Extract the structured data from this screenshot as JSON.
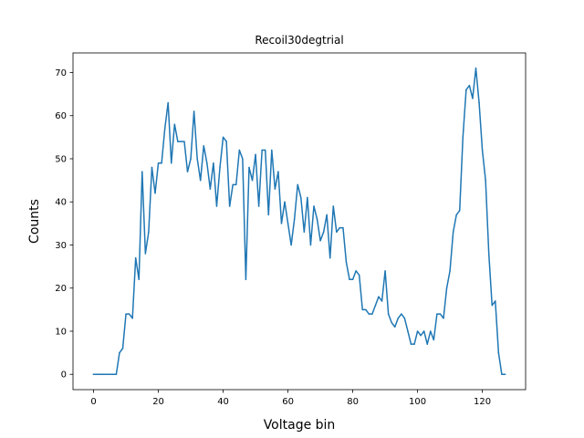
{
  "chart_data": {
    "type": "line",
    "title": "Recoil30degtrial",
    "xlabel": "Voltage bin",
    "ylabel": "Counts",
    "xlim": [
      -6.35,
      133.35
    ],
    "ylim": [
      -3.55,
      74.55
    ],
    "xticks": [
      0,
      20,
      40,
      60,
      80,
      100,
      120
    ],
    "yticks": [
      0,
      10,
      20,
      30,
      40,
      50,
      60,
      70
    ],
    "grid": false,
    "legend": "none",
    "series": [
      {
        "color": "#1f77b4",
        "x": [
          0,
          1,
          2,
          3,
          4,
          5,
          6,
          7,
          8,
          9,
          10,
          11,
          12,
          13,
          14,
          15,
          16,
          17,
          18,
          19,
          20,
          21,
          22,
          23,
          24,
          25,
          26,
          27,
          28,
          29,
          30,
          31,
          32,
          33,
          34,
          35,
          36,
          37,
          38,
          39,
          40,
          41,
          42,
          43,
          44,
          45,
          46,
          47,
          48,
          49,
          50,
          51,
          52,
          53,
          54,
          55,
          56,
          57,
          58,
          59,
          60,
          61,
          62,
          63,
          64,
          65,
          66,
          67,
          68,
          69,
          70,
          71,
          72,
          73,
          74,
          75,
          76,
          77,
          78,
          79,
          80,
          81,
          82,
          83,
          84,
          85,
          86,
          87,
          88,
          89,
          90,
          91,
          92,
          93,
          94,
          95,
          96,
          97,
          98,
          99,
          100,
          101,
          102,
          103,
          104,
          105,
          106,
          107,
          108,
          109,
          110,
          111,
          112,
          113,
          114,
          115,
          116,
          117,
          118,
          119,
          120,
          121,
          122,
          123,
          124,
          125,
          126,
          127
        ],
        "values": [
          0,
          0,
          0,
          0,
          0,
          0,
          0,
          0,
          5,
          6,
          14,
          14,
          13,
          27,
          22,
          47,
          28,
          33,
          48,
          42,
          49,
          49,
          57,
          63,
          49,
          58,
          54,
          54,
          54,
          47,
          50,
          61,
          50,
          45,
          53,
          49,
          43,
          49,
          39,
          48,
          55,
          54,
          39,
          44,
          44,
          52,
          50,
          22,
          48,
          45,
          51,
          39,
          52,
          52,
          37,
          52,
          43,
          47,
          35,
          40,
          35,
          30,
          36,
          44,
          41,
          33,
          41,
          30,
          39,
          36,
          31,
          33,
          37,
          27,
          39,
          33,
          34,
          34,
          26,
          22,
          22,
          24,
          23,
          15,
          15,
          14,
          14,
          16,
          18,
          17,
          24,
          14,
          12,
          11,
          13,
          14,
          13,
          10,
          7,
          7,
          10,
          9,
          10,
          7,
          10,
          8,
          14,
          14,
          13,
          20,
          24,
          33,
          37,
          38,
          55,
          66,
          67,
          64,
          71,
          63,
          52,
          45,
          28,
          16,
          17,
          5,
          0,
          0
        ]
      }
    ]
  }
}
